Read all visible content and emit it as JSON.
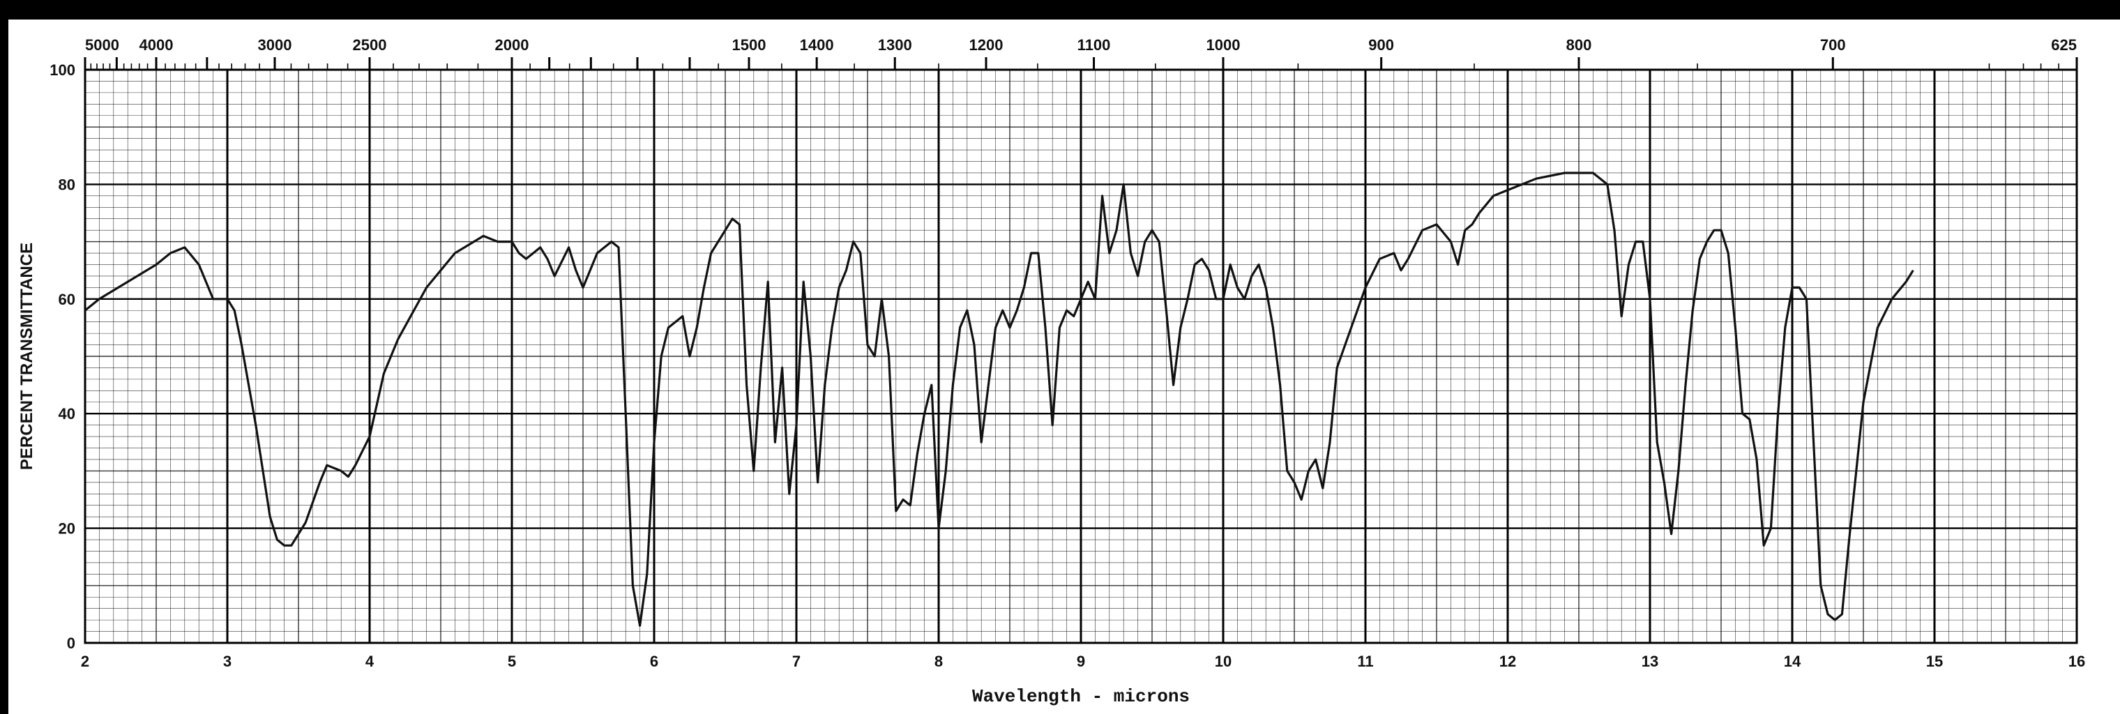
{
  "chart_data": {
    "type": "line",
    "title": "",
    "xlabel": "Wavelength - microns",
    "ylabel": "PERCENT TRANSMITTANCE",
    "xlim": [
      2,
      16
    ],
    "ylim": [
      0,
      100
    ],
    "grid": true,
    "x_ticks": [
      2,
      3,
      4,
      5,
      6,
      7,
      8,
      9,
      10,
      11,
      12,
      13,
      14,
      15,
      16
    ],
    "y_ticks": [
      0,
      20,
      40,
      60,
      80,
      100
    ],
    "top_axis_labels": [
      "5000",
      "4000",
      "3000",
      "2500",
      "2000",
      "1500",
      "1400",
      "1300",
      "1200",
      "1100",
      "1000",
      "900",
      "800",
      "700",
      "625"
    ],
    "colors": {
      "background": "#ffffff",
      "grid": "#000000",
      "curve": "#111111"
    },
    "series": [
      {
        "x": [
          2.0,
          2.1,
          2.3,
          2.5,
          2.6,
          2.7,
          2.8,
          2.9,
          3.0,
          3.05,
          3.1,
          3.2,
          3.3,
          3.35,
          3.4,
          3.45,
          3.55,
          3.65,
          3.7,
          3.8,
          3.85,
          3.9,
          4.0,
          4.1,
          4.2,
          4.4,
          4.6,
          4.8,
          4.9,
          5.0,
          5.05,
          5.1,
          5.2,
          5.25,
          5.3,
          5.4,
          5.45,
          5.5,
          5.6,
          5.7,
          5.75,
          5.8,
          5.85,
          5.9,
          5.95,
          6.0,
          6.05,
          6.1,
          6.2,
          6.25,
          6.3,
          6.35,
          6.4,
          6.45,
          6.5,
          6.55,
          6.6,
          6.65,
          6.7,
          6.75,
          6.8,
          6.85,
          6.9,
          6.95,
          7.0,
          7.05,
          7.1,
          7.15,
          7.2,
          7.25,
          7.3,
          7.35,
          7.4,
          7.45,
          7.5,
          7.55,
          7.6,
          7.65,
          7.7,
          7.75,
          7.8,
          7.85,
          7.9,
          7.95,
          8.0,
          8.05,
          8.1,
          8.15,
          8.2,
          8.25,
          8.3,
          8.35,
          8.4,
          8.45,
          8.5,
          8.55,
          8.6,
          8.65,
          8.7,
          8.75,
          8.8,
          8.85,
          8.9,
          8.95,
          9.0,
          9.05,
          9.1,
          9.15,
          9.2,
          9.25,
          9.3,
          9.35,
          9.4,
          9.45,
          9.5,
          9.55,
          9.6,
          9.65,
          9.7,
          9.75,
          9.8,
          9.85,
          9.9,
          9.95,
          10.0,
          10.05,
          10.1,
          10.15,
          10.2,
          10.25,
          10.3,
          10.35,
          10.4,
          10.45,
          10.5,
          10.55,
          10.6,
          10.65,
          10.7,
          10.75,
          10.8,
          10.9,
          11.0,
          11.1,
          11.2,
          11.25,
          11.3,
          11.4,
          11.5,
          11.6,
          11.65,
          11.7,
          11.75,
          11.8,
          11.9,
          12.0,
          12.2,
          12.4,
          12.6,
          12.7,
          12.75,
          12.8,
          12.85,
          12.9,
          12.95,
          13.0,
          13.05,
          13.1,
          13.15,
          13.2,
          13.25,
          13.3,
          13.35,
          13.4,
          13.45,
          13.5,
          13.55,
          13.6,
          13.65,
          13.7,
          13.75,
          13.8,
          13.85,
          13.9,
          13.95,
          14.0,
          14.05,
          14.1,
          14.15,
          14.2,
          14.25,
          14.3,
          14.35,
          14.4,
          14.45,
          14.5,
          14.6,
          14.7,
          14.8,
          14.85
        ],
        "y": [
          58,
          60,
          63,
          66,
          68,
          69,
          66,
          60,
          60,
          58,
          52,
          38,
          22,
          18,
          17,
          17,
          21,
          28,
          31,
          30,
          29,
          31,
          36,
          47,
          53,
          62,
          68,
          71,
          70,
          70,
          68,
          67,
          69,
          67,
          64,
          69,
          65,
          62,
          68,
          70,
          69,
          40,
          10,
          3,
          12,
          35,
          50,
          55,
          57,
          50,
          55,
          62,
          68,
          70,
          72,
          74,
          73,
          45,
          30,
          48,
          63,
          35,
          48,
          26,
          38,
          63,
          50,
          28,
          45,
          55,
          62,
          65,
          70,
          68,
          52,
          50,
          60,
          50,
          23,
          25,
          24,
          33,
          40,
          45,
          20,
          30,
          45,
          55,
          58,
          52,
          35,
          45,
          55,
          58,
          55,
          58,
          62,
          68,
          68,
          55,
          38,
          55,
          58,
          57,
          60,
          63,
          60,
          78,
          68,
          72,
          80,
          68,
          64,
          70,
          72,
          70,
          58,
          45,
          55,
          60,
          66,
          67,
          65,
          60,
          60,
          66,
          62,
          60,
          64,
          66,
          62,
          55,
          45,
          30,
          28,
          25,
          30,
          32,
          27,
          35,
          48,
          55,
          62,
          67,
          68,
          65,
          67,
          72,
          73,
          70,
          66,
          72,
          73,
          75,
          78,
          79,
          81,
          82,
          82,
          80,
          72,
          57,
          66,
          70,
          70,
          60,
          35,
          28,
          19,
          30,
          45,
          58,
          67,
          70,
          72,
          72,
          68,
          55,
          40,
          39,
          32,
          17,
          20,
          40,
          55,
          62,
          62,
          60,
          35,
          10,
          5,
          4,
          5,
          18,
          30,
          42,
          55,
          60,
          63,
          65
        ]
      }
    ]
  }
}
